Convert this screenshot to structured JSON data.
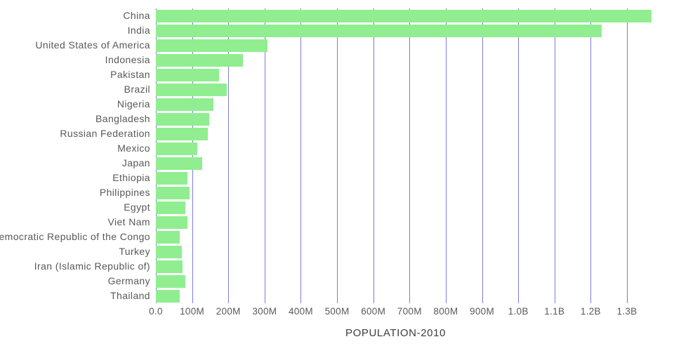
{
  "chart_data": {
    "type": "bar",
    "orientation": "horizontal",
    "title": "",
    "xlabel": "POPULATION-2010",
    "ylabel": "",
    "categories": [
      "China",
      "India",
      "United States of America",
      "Indonesia",
      "Pakistan",
      "Brazil",
      "Nigeria",
      "Bangladesh",
      "Russian Federation",
      "Mexico",
      "Japan",
      "Ethiopia",
      "Philippines",
      "Egypt",
      "Viet Nam",
      "Democratic Republic of the Congo",
      "Turkey",
      "Iran (Islamic Republic of)",
      "Germany",
      "Thailand"
    ],
    "values": [
      1368000000,
      1231000000,
      309000000,
      240000000,
      174000000,
      195000000,
      158000000,
      148000000,
      143000000,
      114000000,
      128000000,
      87000000,
      93000000,
      81000000,
      88000000,
      66000000,
      72000000,
      74000000,
      81000000,
      66000000
    ],
    "x_ticks": [
      {
        "label": "0.0",
        "value": 0
      },
      {
        "label": "100M",
        "value": 100000000
      },
      {
        "label": "200M",
        "value": 200000000
      },
      {
        "label": "300M",
        "value": 300000000
      },
      {
        "label": "400M",
        "value": 400000000
      },
      {
        "label": "500M",
        "value": 500000000
      },
      {
        "label": "600M",
        "value": 600000000
      },
      {
        "label": "700M",
        "value": 700000000
      },
      {
        "label": "800M",
        "value": 800000000
      },
      {
        "label": "900M",
        "value": 900000000
      },
      {
        "label": "1.0B",
        "value": 1000000000
      },
      {
        "label": "1.1B",
        "value": 1100000000
      },
      {
        "label": "1.2B",
        "value": 1200000000
      },
      {
        "label": "1.3B",
        "value": 1300000000
      }
    ],
    "xlim": [
      0,
      1300000000
    ],
    "grid": true,
    "legend": "none",
    "colors": {
      "bar": "#90ee90",
      "grid": "#6565d6",
      "category_text": "#595959",
      "tick_text": "#595959",
      "title_text": "#3d3d3d",
      "background": "#ffffff"
    }
  }
}
